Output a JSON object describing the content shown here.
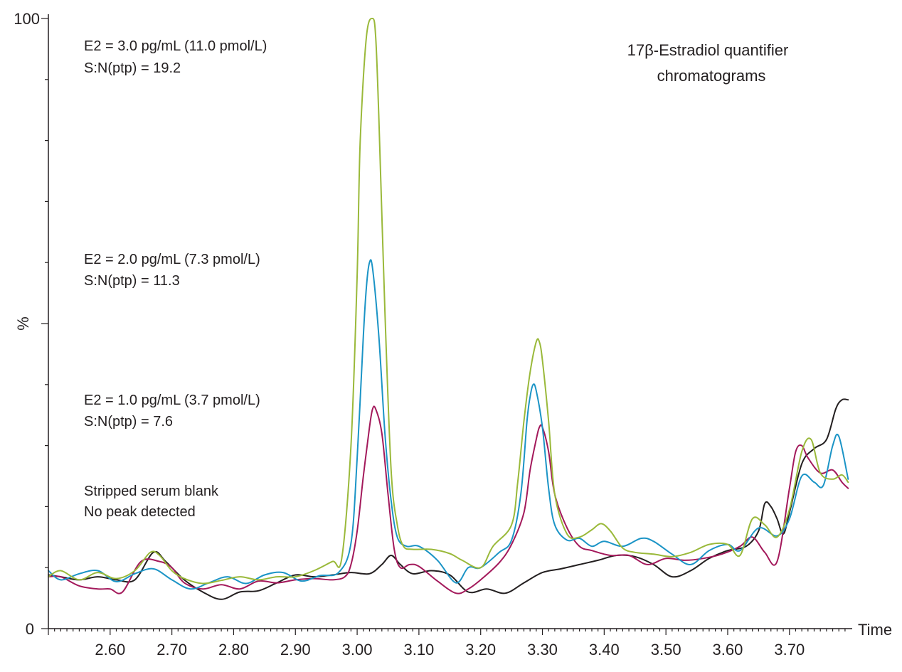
{
  "chart_data": {
    "type": "line",
    "title_lines": [
      "17β-Estradiol quantifier",
      "chromatograms"
    ],
    "xlabel": "Time",
    "ylabel": "%",
    "xlim": [
      2.5,
      3.8
    ],
    "ylim": [
      0,
      100
    ],
    "x_tick_labels": [
      "2.60",
      "2.70",
      "2.80",
      "2.90",
      "3.00",
      "3.10",
      "3.20",
      "3.30",
      "3.40",
      "3.50",
      "3.60",
      "3.70"
    ],
    "x_ticks": [
      2.6,
      2.7,
      2.8,
      2.9,
      3.0,
      3.1,
      3.2,
      3.3,
      3.4,
      3.5,
      3.6,
      3.7
    ],
    "y_tick_labels": [
      "0",
      "%",
      "100"
    ],
    "y_major_ticks": [
      0,
      50,
      100
    ],
    "y_minor_ticks": [
      10,
      20,
      30,
      40,
      60,
      70,
      80,
      90
    ],
    "grid": false,
    "colors": {
      "e2_3": "#9ab93a",
      "e2_2": "#1b94c6",
      "e2_1": "#a3195b",
      "blank": "#231f20"
    },
    "series": [
      {
        "key": "e2_3",
        "annotation_lines": [
          "E2 = 3.0 pg/mL (11.0 pmol/L)",
          "S:N(ptp) = 19.2"
        ],
        "x": [
          2.5,
          2.52,
          2.55,
          2.58,
          2.61,
          2.64,
          2.665,
          2.68,
          2.7,
          2.72,
          2.75,
          2.78,
          2.81,
          2.84,
          2.87,
          2.9,
          2.93,
          2.96,
          2.975,
          2.99,
          3.0,
          3.005,
          3.015,
          3.025,
          3.03,
          3.035,
          3.045,
          3.055,
          3.065,
          3.075,
          3.09,
          3.12,
          3.15,
          3.17,
          3.2,
          3.22,
          3.25,
          3.26,
          3.27,
          3.28,
          3.29,
          3.295,
          3.3,
          3.31,
          3.32,
          3.34,
          3.36,
          3.38,
          3.395,
          3.41,
          3.43,
          3.45,
          3.48,
          3.51,
          3.54,
          3.57,
          3.6,
          3.62,
          3.64,
          3.66,
          3.68,
          3.7,
          3.72,
          3.735,
          3.75,
          3.77,
          3.785,
          3.795
        ],
        "y": [
          8.5,
          9.5,
          8.0,
          9.2,
          8.2,
          9.5,
          12.5,
          12.0,
          9.5,
          8.2,
          7.4,
          7.9,
          8.5,
          8.0,
          8.5,
          8.5,
          9.5,
          11.0,
          11.5,
          30.0,
          58.0,
          80.0,
          97.0,
          100.0,
          97.0,
          84.0,
          52.0,
          26.0,
          17.0,
          13.5,
          13.0,
          13.0,
          12.3,
          11.2,
          10.0,
          13.5,
          17.0,
          24.0,
          34.0,
          42.0,
          47.0,
          47.0,
          44.0,
          34.0,
          22.0,
          15.5,
          15.0,
          16.2,
          17.2,
          16.0,
          13.2,
          12.5,
          12.2,
          11.8,
          12.5,
          13.8,
          13.8,
          12.0,
          18.0,
          17.0,
          15.0,
          19.5,
          29.0,
          31.0,
          25.5,
          24.5,
          25.2,
          24.0
        ]
      },
      {
        "key": "e2_2",
        "annotation_lines": [
          "E2 = 2.0 pg/mL (7.3 pmol/L)",
          "S:N(ptp) = 11.3"
        ],
        "x": [
          2.5,
          2.52,
          2.55,
          2.58,
          2.61,
          2.64,
          2.67,
          2.7,
          2.73,
          2.76,
          2.79,
          2.82,
          2.85,
          2.88,
          2.91,
          2.94,
          2.97,
          2.99,
          3.0,
          3.01,
          3.015,
          3.02,
          3.025,
          3.035,
          3.045,
          3.055,
          3.065,
          3.08,
          3.1,
          3.13,
          3.16,
          3.18,
          3.2,
          3.23,
          3.25,
          3.265,
          3.275,
          3.28,
          3.285,
          3.29,
          3.3,
          3.31,
          3.32,
          3.34,
          3.36,
          3.38,
          3.4,
          3.43,
          3.46,
          3.48,
          3.51,
          3.54,
          3.57,
          3.6,
          3.62,
          3.65,
          3.68,
          3.7,
          3.72,
          3.74,
          3.755,
          3.77,
          3.78,
          3.795
        ],
        "y": [
          9.5,
          8.0,
          9.0,
          9.5,
          7.7,
          9.0,
          9.8,
          8.0,
          6.5,
          7.5,
          8.5,
          7.4,
          8.8,
          9.2,
          7.8,
          8.7,
          9.2,
          14.0,
          28.0,
          48.0,
          56.0,
          60.0,
          59.0,
          48.0,
          32.0,
          21.0,
          15.0,
          13.5,
          13.5,
          11.2,
          7.5,
          10.0,
          10.0,
          12.5,
          14.5,
          22.0,
          34.0,
          38.0,
          40.0,
          39.0,
          33.0,
          23.0,
          17.0,
          14.5,
          14.8,
          13.5,
          14.3,
          13.5,
          14.8,
          14.3,
          12.2,
          10.5,
          12.8,
          13.8,
          12.8,
          16.5,
          15.2,
          18.0,
          25.0,
          24.0,
          23.5,
          30.0,
          31.5,
          24.5
        ]
      },
      {
        "key": "e2_1",
        "annotation_lines": [
          "E2 = 1.0 pg/mL (3.7 pmol/L)",
          "S:N(ptp) = 7.6"
        ],
        "x": [
          2.5,
          2.52,
          2.55,
          2.58,
          2.6,
          2.62,
          2.65,
          2.68,
          2.7,
          2.72,
          2.75,
          2.78,
          2.81,
          2.84,
          2.87,
          2.9,
          2.93,
          2.96,
          2.98,
          2.99,
          3.0,
          3.01,
          3.02,
          3.025,
          3.03,
          3.04,
          3.05,
          3.06,
          3.07,
          3.085,
          3.1,
          3.13,
          3.16,
          3.18,
          3.2,
          3.23,
          3.25,
          3.27,
          3.28,
          3.29,
          3.295,
          3.3,
          3.31,
          3.32,
          3.34,
          3.36,
          3.38,
          3.41,
          3.44,
          3.47,
          3.5,
          3.53,
          3.56,
          3.59,
          3.62,
          3.64,
          3.66,
          3.68,
          3.7,
          3.71,
          3.72,
          3.73,
          3.75,
          3.77,
          3.785,
          3.795
        ],
        "y": [
          8.5,
          8.5,
          7.0,
          6.5,
          6.5,
          6.0,
          11.0,
          11.0,
          10.0,
          7.5,
          6.5,
          7.2,
          6.5,
          7.8,
          7.5,
          8.0,
          8.2,
          8.0,
          8.5,
          10.5,
          16.0,
          25.0,
          33.0,
          36.0,
          36.0,
          32.0,
          22.0,
          13.0,
          10.0,
          10.5,
          10.2,
          7.8,
          5.8,
          6.5,
          8.0,
          10.8,
          13.8,
          19.0,
          26.0,
          31.0,
          33.0,
          33.0,
          29.0,
          22.0,
          16.5,
          13.5,
          12.8,
          12.0,
          12.0,
          10.5,
          11.5,
          11.2,
          11.5,
          12.2,
          13.5,
          15.0,
          12.5,
          11.0,
          23.0,
          29.0,
          30.0,
          28.0,
          25.5,
          26.0,
          24.0,
          23.0
        ]
      },
      {
        "key": "blank",
        "annotation_lines": [
          "Stripped serum blank",
          "No peak detected"
        ],
        "x": [
          2.5,
          2.52,
          2.55,
          2.58,
          2.61,
          2.64,
          2.67,
          2.69,
          2.72,
          2.75,
          2.78,
          2.81,
          2.84,
          2.87,
          2.9,
          2.93,
          2.96,
          2.99,
          3.02,
          3.04,
          3.055,
          3.07,
          3.09,
          3.12,
          3.15,
          3.18,
          3.21,
          3.24,
          3.27,
          3.3,
          3.33,
          3.36,
          3.39,
          3.42,
          3.45,
          3.48,
          3.51,
          3.54,
          3.57,
          3.6,
          3.63,
          3.65,
          3.66,
          3.67,
          3.68,
          3.69,
          3.7,
          3.72,
          3.74,
          3.76,
          3.775,
          3.785,
          3.795
        ],
        "y": [
          8.8,
          8.5,
          8.0,
          8.5,
          8.0,
          8.0,
          12.5,
          11.0,
          8.0,
          6.0,
          4.8,
          6.0,
          6.2,
          7.5,
          8.8,
          8.5,
          8.8,
          9.2,
          9.0,
          10.5,
          12.0,
          10.5,
          9.0,
          9.5,
          8.8,
          6.0,
          6.5,
          5.8,
          7.5,
          9.2,
          9.8,
          10.5,
          11.2,
          12.0,
          11.8,
          10.5,
          8.5,
          9.5,
          11.5,
          12.8,
          13.5,
          16.0,
          20.5,
          20.0,
          18.0,
          15.5,
          19.0,
          27.0,
          29.5,
          31.0,
          36.0,
          37.5,
          37.5
        ]
      }
    ]
  }
}
